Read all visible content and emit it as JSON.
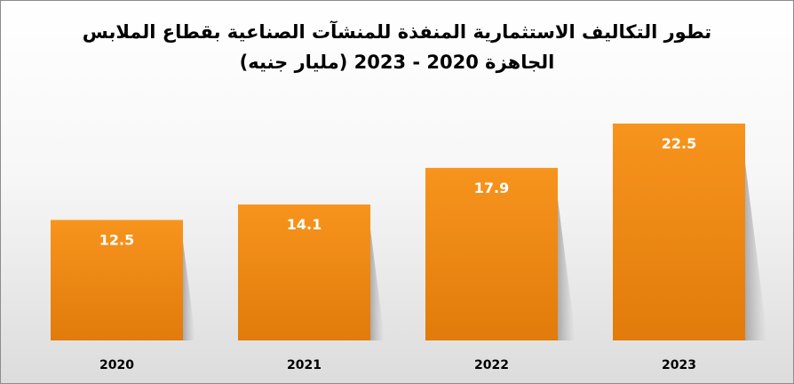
{
  "chart_data": {
    "type": "bar",
    "title_line1": "تطور التكاليف الاستثمارية المنفذة للمنشآت الصناعية بقطاع الملابس",
    "title_line2": "الجاهزة 2020 - 2023   (مليار جنيه)",
    "categories": [
      "2020",
      "2021",
      "2022",
      "2023"
    ],
    "values": [
      12.5,
      14.1,
      17.9,
      22.5
    ],
    "data_labels": [
      "12.5",
      "14.1",
      "17.9",
      "22.5"
    ],
    "ylim": [
      0,
      25
    ],
    "grid": false,
    "legend": "none",
    "bar_color_top": "#f7941d",
    "bar_color_bottom": "#e17b0b",
    "label_color": "#ffffff",
    "xlabel": "",
    "ylabel": ""
  }
}
